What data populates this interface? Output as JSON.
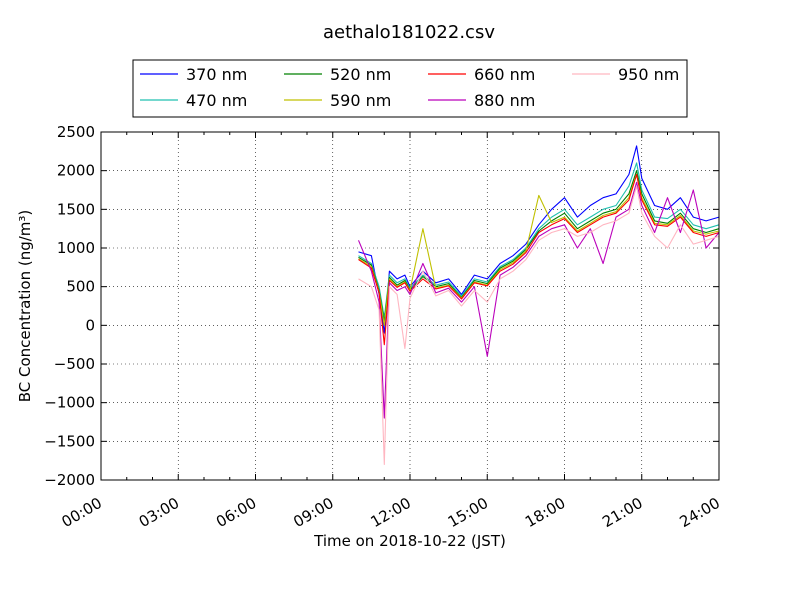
{
  "chart_data": {
    "type": "line",
    "title": "aethalo181022.csv",
    "xlabel": "Time on 2018-10-22 (JST)",
    "ylabel": "BC Concentration (ng/m³)",
    "xlim": [
      0,
      24
    ],
    "ylim": [
      -2000,
      2500
    ],
    "x_ticks": [
      0,
      3,
      6,
      9,
      12,
      15,
      18,
      21,
      24
    ],
    "x_tick_labels": [
      "00:00",
      "03:00",
      "06:00",
      "09:00",
      "12:00",
      "15:00",
      "18:00",
      "21:00",
      "24:00"
    ],
    "y_ticks": [
      -2000,
      -1500,
      -1000,
      -500,
      0,
      500,
      1000,
      1500,
      2000,
      2500
    ],
    "y_tick_labels": [
      "−2000",
      "−1500",
      "−1000",
      "−500",
      "0",
      "500",
      "1000",
      "1500",
      "2000",
      "2500"
    ],
    "grid": true,
    "legend_position": "top",
    "x": [
      10.0,
      10.5,
      10.8,
      11.0,
      11.2,
      11.5,
      11.8,
      12.0,
      12.5,
      13.0,
      13.5,
      14.0,
      14.5,
      15.0,
      15.5,
      16.0,
      16.5,
      17.0,
      17.5,
      18.0,
      18.5,
      19.0,
      19.5,
      20.0,
      20.5,
      20.8,
      21.0,
      21.5,
      22.0,
      22.5,
      23.0,
      23.5,
      24.0
    ],
    "series": [
      {
        "name": "370 nm",
        "color": "#0000ff",
        "values": [
          950,
          900,
          400,
          -100,
          700,
          600,
          650,
          500,
          700,
          550,
          600,
          400,
          650,
          600,
          800,
          900,
          1050,
          1300,
          1500,
          1650,
          1400,
          1550,
          1650,
          1700,
          1950,
          2320,
          1900,
          1550,
          1500,
          1650,
          1400,
          1350,
          1400
        ]
      },
      {
        "name": "470 nm",
        "color": "#20c0b0",
        "values": [
          900,
          800,
          500,
          100,
          650,
          550,
          600,
          480,
          650,
          520,
          560,
          380,
          600,
          560,
          760,
          850,
          1000,
          1250,
          1400,
          1500,
          1300,
          1400,
          1500,
          1550,
          1800,
          2100,
          1750,
          1400,
          1380,
          1500,
          1300,
          1250,
          1300
        ]
      },
      {
        "name": "520 nm",
        "color": "#008000",
        "values": [
          880,
          780,
          450,
          50,
          620,
          520,
          580,
          460,
          630,
          500,
          540,
          360,
          580,
          540,
          740,
          830,
          980,
          1220,
          1350,
          1450,
          1250,
          1350,
          1450,
          1500,
          1700,
          2000,
          1700,
          1350,
          1320,
          1450,
          1250,
          1200,
          1250
        ]
      },
      {
        "name": "590 nm",
        "color": "#c0c000",
        "values": [
          860,
          760,
          430,
          0,
          600,
          500,
          560,
          450,
          1250,
          480,
          520,
          350,
          560,
          520,
          720,
          810,
          960,
          1680,
          1330,
          1400,
          1220,
          1320,
          1420,
          1470,
          1650,
          1950,
          1650,
          1320,
          1300,
          1420,
          1220,
          1180,
          1220
        ]
      },
      {
        "name": "660 nm",
        "color": "#ff0000",
        "values": [
          850,
          740,
          420,
          -250,
          580,
          490,
          550,
          440,
          600,
          470,
          510,
          340,
          550,
          510,
          700,
          790,
          940,
          1200,
          1300,
          1380,
          1200,
          1300,
          1400,
          1450,
          1620,
          1950,
          1620,
          1300,
          1280,
          1400,
          1200,
          1150,
          1200
        ]
      },
      {
        "name": "880 nm",
        "color": "#bb00bb",
        "values": [
          1100,
          700,
          300,
          -1200,
          550,
          450,
          500,
          400,
          800,
          420,
          480,
          300,
          500,
          -400,
          650,
          750,
          900,
          1150,
          1250,
          1300,
          1000,
          1250,
          800,
          1400,
          1500,
          1850,
          1550,
          1200,
          1650,
          1200,
          1750,
          1000,
          1200
        ]
      },
      {
        "name": "950 nm",
        "color": "#ffb6c1",
        "values": [
          600,
          500,
          200,
          -1800,
          500,
          400,
          -300,
          350,
          700,
          380,
          450,
          250,
          450,
          300,
          600,
          700,
          850,
          1100,
          1200,
          1250,
          1150,
          1200,
          1300,
          1350,
          1450,
          1800,
          1450,
          1150,
          1000,
          1300,
          1050,
          1100,
          1150
        ]
      }
    ]
  }
}
